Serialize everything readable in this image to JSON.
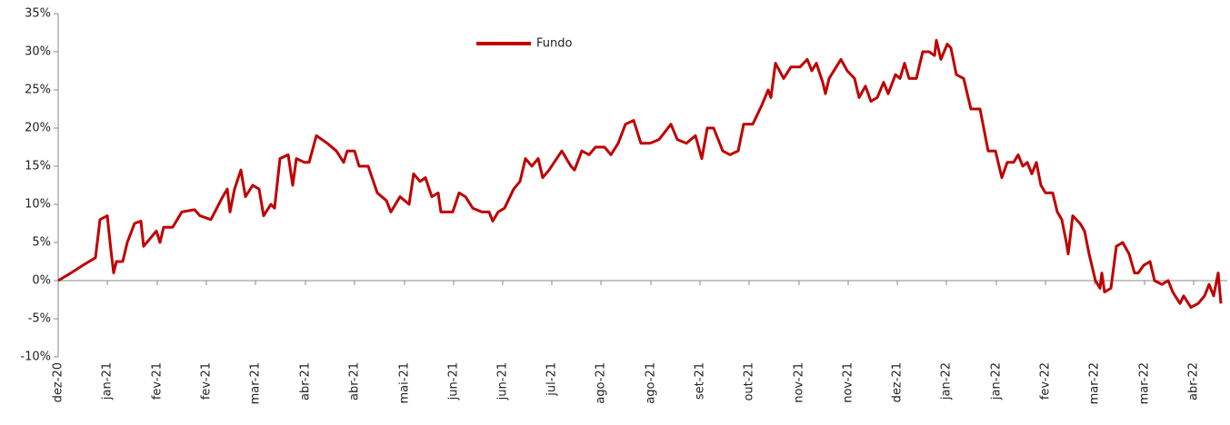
{
  "chart_data": {
    "type": "line",
    "series": [
      {
        "name": "Fundo",
        "color": "#c00000",
        "x": [
          0,
          14,
          27,
          41,
          46,
          54,
          58,
          61,
          64,
          71,
          76,
          84,
          91,
          94,
          101,
          108,
          112,
          116,
          126,
          136,
          150,
          156,
          168,
          181,
          186,
          189,
          194,
          201,
          206,
          214,
          221,
          226,
          234,
          238,
          244,
          253,
          258,
          262,
          271,
          276,
          284,
          296,
          306,
          314,
          318,
          326,
          331,
          341,
          351,
          361,
          366,
          376,
          386,
          391,
          398,
          404,
          411,
          418,
          421,
          434,
          441,
          448,
          456,
          466,
          474,
          478,
          484,
          491,
          501,
          508,
          514,
          521,
          528,
          533,
          540,
          554,
          564,
          568,
          576,
          584,
          591,
          601,
          608,
          616,
          624,
          633,
          641,
          651,
          661,
          674,
          681,
          691,
          701,
          708,
          714,
          721,
          731,
          739,
          748,
          754,
          764,
          774,
          781,
          784,
          789,
          798,
          806,
          816,
          824,
          829,
          834,
          841,
          844,
          848,
          861,
          868,
          876,
          881,
          888,
          894,
          901,
          908,
          913,
          921,
          926,
          931,
          936,
          944,
          951,
          958,
          964,
          966,
          971,
          978,
          982,
          988,
          996,
          1004,
          1014,
          1023,
          1031,
          1038,
          1044,
          1051,
          1056,
          1061,
          1066,
          1071,
          1076,
          1081,
          1086,
          1094,
          1099,
          1104,
          1109,
          1111,
          1116,
          1124,
          1129,
          1134,
          1141,
          1146,
          1148,
          1151,
          1158,
          1164,
          1171,
          1178,
          1184,
          1188,
          1194,
          1201,
          1206,
          1214,
          1221,
          1226,
          1234,
          1238,
          1246,
          1254,
          1261,
          1266,
          1271,
          1276,
          1279
        ],
        "values": [
          0,
          1,
          2,
          3,
          8,
          8.5,
          4,
          1,
          2.5,
          2.5,
          5,
          7.5,
          7.8,
          4.5,
          5.5,
          6.5,
          5,
          7,
          7,
          9,
          9.3,
          8.5,
          8,
          11,
          12,
          9,
          12,
          14.5,
          11,
          12.5,
          12,
          8.5,
          10,
          9.5,
          16,
          16.5,
          12.5,
          16,
          15.5,
          15.5,
          19,
          18,
          17,
          15.5,
          17,
          17,
          15,
          15,
          11.5,
          10.5,
          9,
          11,
          10,
          14,
          13,
          13.5,
          11,
          11.5,
          9,
          9,
          11.5,
          11,
          9.5,
          9,
          9,
          7.8,
          9,
          9.5,
          12,
          13,
          16,
          15,
          16,
          13.5,
          14.5,
          17,
          15,
          14.5,
          17,
          16.5,
          17.5,
          17.5,
          16.5,
          18,
          20.5,
          21,
          18,
          18,
          18.5,
          20.5,
          18.5,
          18,
          19,
          16,
          20,
          20,
          17,
          16.5,
          17,
          20.5,
          20.5,
          23,
          25,
          24,
          28.5,
          26.5,
          28,
          28,
          29,
          27.5,
          28.5,
          26,
          24.5,
          26.5,
          29,
          27.5,
          26.5,
          24,
          25.5,
          23.5,
          24,
          26,
          24.5,
          27,
          26.5,
          28.5,
          26.5,
          26.5,
          30,
          30,
          29.5,
          31.5,
          29,
          31,
          30.5,
          27,
          26.5,
          22.5,
          22.5,
          17,
          17,
          13.5,
          15.5,
          15.5,
          16.5,
          15,
          15.5,
          14,
          15.5,
          12.5,
          11.5,
          11.5,
          9,
          8,
          5,
          3.5,
          8.5,
          7.5,
          6.5,
          3.5,
          0,
          -1,
          1,
          -1.5,
          -1,
          4.5,
          5,
          3.5,
          1,
          1,
          2,
          2.5,
          0,
          -0.5,
          0,
          -1.5,
          -3,
          -2,
          -3.5,
          -3,
          -2,
          -0.5,
          -2,
          1,
          -3
        ]
      }
    ],
    "xlim": [
      0,
      1286
    ],
    "xticks": [
      {
        "value": 0,
        "label": "dez-20"
      },
      {
        "value": 54,
        "label": "jan-21"
      },
      {
        "value": 109,
        "label": "fev-21"
      },
      {
        "value": 163,
        "label": "fev-21"
      },
      {
        "value": 217,
        "label": "mar-21"
      },
      {
        "value": 272,
        "label": "abr-21"
      },
      {
        "value": 326,
        "label": "abr-21"
      },
      {
        "value": 381,
        "label": "mai-21"
      },
      {
        "value": 435,
        "label": "jun-21"
      },
      {
        "value": 489,
        "label": "jun-21"
      },
      {
        "value": 543,
        "label": "jul-21"
      },
      {
        "value": 597,
        "label": "ago-21"
      },
      {
        "value": 652,
        "label": "ago-21"
      },
      {
        "value": 706,
        "label": "set-21"
      },
      {
        "value": 760,
        "label": "out-21"
      },
      {
        "value": 815,
        "label": "nov-21"
      },
      {
        "value": 869,
        "label": "nov-21"
      },
      {
        "value": 923,
        "label": "dez-21"
      },
      {
        "value": 977,
        "label": "jan-22"
      },
      {
        "value": 1032,
        "label": "jan-22"
      },
      {
        "value": 1086,
        "label": "fev-22"
      },
      {
        "value": 1140,
        "label": "mar-22"
      },
      {
        "value": 1195,
        "label": "mar-22"
      },
      {
        "value": 1249,
        "label": "abr-22"
      }
    ],
    "ylim": [
      -10,
      35
    ],
    "yticks": [
      {
        "value": -10,
        "label": "-10%"
      },
      {
        "value": -5,
        "label": "-5%"
      },
      {
        "value": 0,
        "label": "0%"
      },
      {
        "value": 5,
        "label": "5%"
      },
      {
        "value": 10,
        "label": "10%"
      },
      {
        "value": 15,
        "label": "15%"
      },
      {
        "value": 20,
        "label": "20%"
      },
      {
        "value": 25,
        "label": "25%"
      },
      {
        "value": 30,
        "label": "30%"
      },
      {
        "value": 35,
        "label": "35%"
      }
    ],
    "legend": "top"
  }
}
